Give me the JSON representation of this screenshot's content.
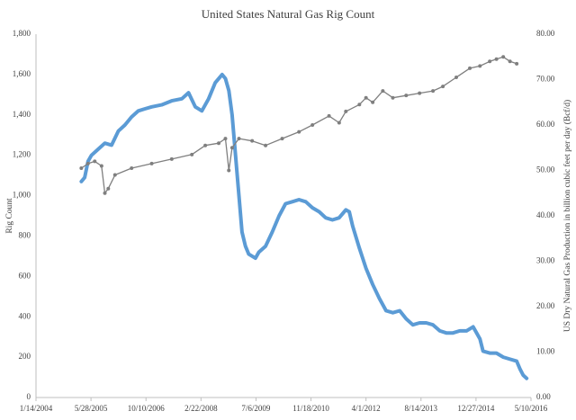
{
  "chart_data": {
    "type": "line",
    "title": "United States Natural Gas Rig Count",
    "y_label": "Rig Count",
    "y2_label": "US Dry Natural Gas Production  in billion cubic feet per day (Bcf/d)",
    "xlim": [
      "1/14/2004",
      "5/10/2016"
    ],
    "xticks": [
      "1/14/2004",
      "5/28/2005",
      "10/10/2006",
      "2/22/2008",
      "7/6/2009",
      "11/18/2010",
      "4/1/2012",
      "8/14/2013",
      "12/27/2014",
      "5/10/2016"
    ],
    "ylim": [
      0,
      1800
    ],
    "yticks": [
      0,
      200,
      400,
      600,
      800,
      {
        "value": 1000,
        "label": "1,000"
      },
      {
        "value": 1200,
        "label": "1,200"
      },
      {
        "value": 1400,
        "label": "1,400"
      },
      {
        "value": 1600,
        "label": "1,600"
      },
      {
        "value": 1800,
        "label": "1,800"
      }
    ],
    "y2lim": [
      0,
      80
    ],
    "y2ticks": [
      {
        "value": 0,
        "label": "0.00"
      },
      {
        "value": 10,
        "label": "10.00"
      },
      {
        "value": 20,
        "label": "20.00"
      },
      {
        "value": 30,
        "label": "30.00"
      },
      {
        "value": 40,
        "label": "40.00"
      },
      {
        "value": 50,
        "label": "50.00"
      },
      {
        "value": 60,
        "label": "60.00"
      },
      {
        "value": 70,
        "label": "70.00"
      },
      {
        "value": 80,
        "label": "80.00"
      }
    ],
    "grid": false,
    "series": [
      {
        "color": "#5b9bd5",
        "axis": "y",
        "markers": false,
        "x": [
          "3/1/2005",
          "4/1/2005",
          "5/1/2005",
          "6/1/2005",
          "8/1/2005",
          "10/1/2005",
          "12/1/2005",
          "2/1/2006",
          "4/1/2006",
          "6/1/2006",
          "8/1/2006",
          "10/1/2006",
          "12/1/2006",
          "3/1/2007",
          "6/1/2007",
          "9/1/2007",
          "11/1/2007",
          "1/1/2008",
          "3/1/2008",
          "5/1/2008",
          "7/1/2008",
          "9/1/2008",
          "10/1/2008",
          "11/1/2008",
          "12/1/2008",
          "1/1/2009",
          "2/1/2009",
          "3/1/2009",
          "4/1/2009",
          "5/1/2009",
          "7/1/2009",
          "8/1/2009",
          "10/1/2009",
          "12/1/2009",
          "2/1/2010",
          "4/1/2010",
          "6/1/2010",
          "8/1/2010",
          "10/1/2010",
          "12/1/2010",
          "2/1/2011",
          "4/1/2011",
          "6/1/2011",
          "8/1/2011",
          "10/1/2011",
          "11/1/2011",
          "12/1/2011",
          "2/1/2012",
          "4/1/2012",
          "6/1/2012",
          "8/1/2012",
          "10/1/2012",
          "12/1/2012",
          "2/1/2013",
          "4/1/2013",
          "6/1/2013",
          "8/1/2013",
          "10/1/2013",
          "12/1/2013",
          "2/1/2014",
          "4/1/2014",
          "6/1/2014",
          "8/1/2014",
          "10/1/2014",
          "12/1/2014",
          "2/1/2015",
          "3/1/2015",
          "5/1/2015",
          "7/1/2015",
          "9/1/2015",
          "11/1/2015",
          "1/1/2016",
          "2/1/2016",
          "3/1/2016",
          "4/1/2016"
        ],
        "values": [
          1070,
          1090,
          1170,
          1200,
          1230,
          1260,
          1250,
          1320,
          1350,
          1390,
          1420,
          1430,
          1440,
          1450,
          1470,
          1480,
          1510,
          1440,
          1420,
          1480,
          1560,
          1600,
          1580,
          1520,
          1400,
          1200,
          1000,
          820,
          750,
          710,
          690,
          720,
          750,
          820,
          900,
          960,
          970,
          980,
          970,
          940,
          920,
          890,
          880,
          890,
          930,
          920,
          850,
          740,
          640,
          560,
          490,
          430,
          420,
          430,
          390,
          360,
          370,
          370,
          360,
          330,
          320,
          320,
          330,
          330,
          350,
          290,
          230,
          220,
          220,
          200,
          190,
          180,
          140,
          110,
          95
        ]
      },
      {
        "color": "#7f7f7f",
        "axis": "y2",
        "markers": true,
        "x": [
          "3/1/2005",
          "5/1/2005",
          "7/1/2005",
          "9/1/2005",
          "10/1/2005",
          "11/1/2005",
          "1/1/2006",
          "6/1/2006",
          "12/1/2006",
          "6/1/2007",
          "12/1/2007",
          "4/1/2008",
          "8/1/2008",
          "10/1/2008",
          "11/1/2008",
          "12/1/2008",
          "2/1/2009",
          "6/1/2009",
          "10/1/2009",
          "3/1/2010",
          "8/1/2010",
          "12/1/2010",
          "5/1/2011",
          "8/1/2011",
          "10/1/2011",
          "2/1/2012",
          "4/1/2012",
          "6/1/2012",
          "9/1/2012",
          "12/1/2012",
          "4/1/2013",
          "8/1/2013",
          "12/1/2013",
          "3/1/2014",
          "7/1/2014",
          "11/1/2014",
          "2/1/2015",
          "5/1/2015",
          "7/1/2015",
          "9/1/2015",
          "11/1/2015",
          "1/1/2016"
        ],
        "values": [
          50.5,
          51.5,
          52,
          51,
          45,
          46,
          49,
          50.5,
          51.5,
          52.5,
          53.5,
          55.5,
          56,
          57,
          50,
          55,
          57,
          56.5,
          55.5,
          57,
          58.5,
          60,
          62,
          60.5,
          63,
          64.5,
          66,
          65,
          67.5,
          66,
          66.5,
          67,
          67.5,
          68.5,
          70.5,
          72.5,
          73,
          74,
          74.5,
          75,
          74,
          73.5
        ]
      }
    ]
  }
}
